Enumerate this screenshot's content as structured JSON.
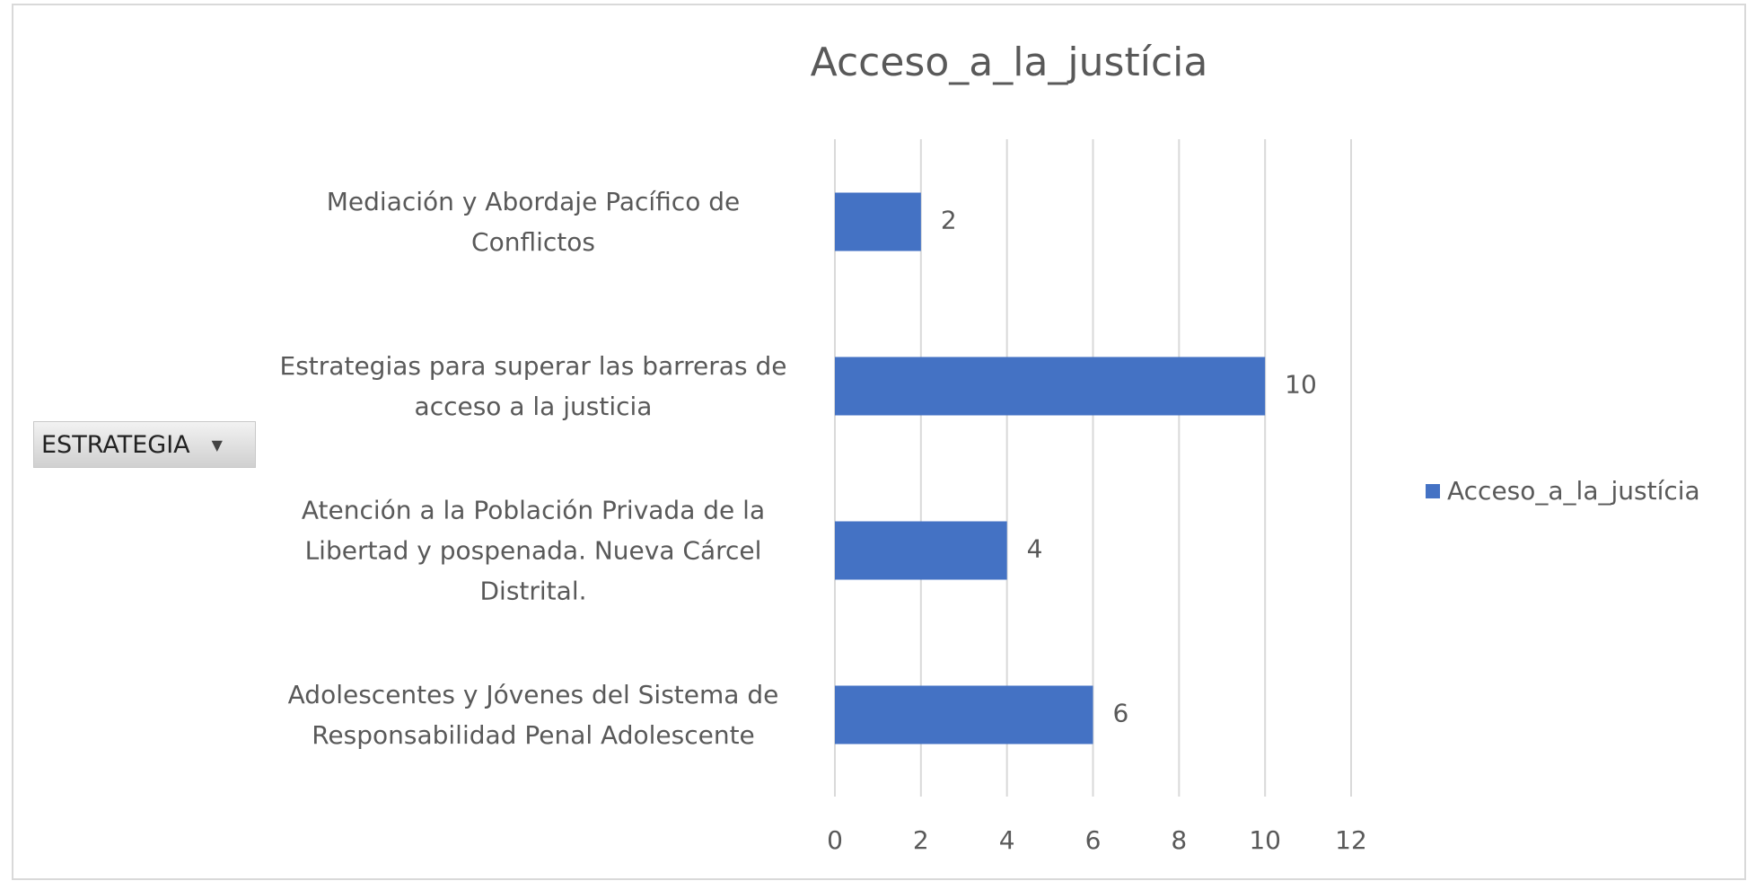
{
  "chart_data": {
    "type": "bar",
    "orientation": "horizontal",
    "title": "Acceso_a_la_justícia",
    "filter_button": "ESTRATEGIA",
    "categories": [
      "Mediación y Abordaje Pacífico de Conflictos",
      "Estrategias para superar las barreras de acceso a la justicia",
      "Atención a la Población Privada de la Libertad y pospenada. Nueva Cárcel Distrital.",
      "Adolescentes y Jóvenes del Sistema de Responsabilidad Penal Adolescente"
    ],
    "series": [
      {
        "name": "Acceso_a_la_justícia",
        "color": "#4472c4",
        "values": [
          2,
          10,
          4,
          6
        ]
      }
    ],
    "xlim": [
      0,
      12
    ],
    "xticks": [
      0,
      2,
      4,
      6,
      8,
      10,
      12
    ],
    "grid": true,
    "legend": "right"
  }
}
